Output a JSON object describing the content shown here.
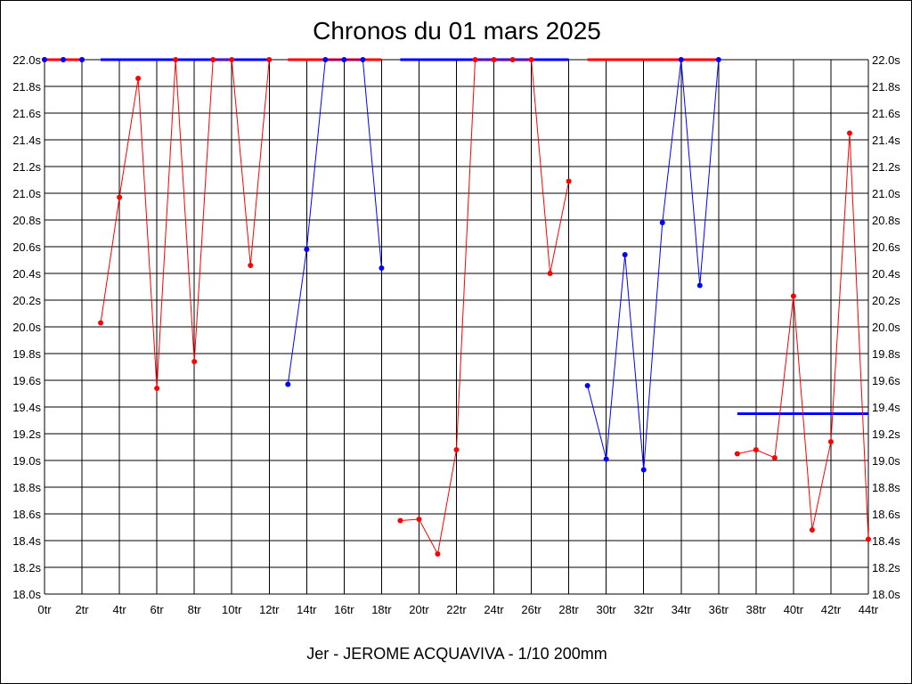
{
  "chart_data": {
    "type": "line",
    "title": "Chronos du 01 mars 2025",
    "subtitle": "Jer - JEROME ACQUAVIVA - 1/10 200mm",
    "xlabel": "",
    "ylabel": "",
    "x_unit_suffix": "tr",
    "y_unit_suffix": "s",
    "xlim": [
      0,
      44
    ],
    "ylim": [
      18.0,
      22.0
    ],
    "x_ticks": [
      "0tr",
      "2tr",
      "4tr",
      "6tr",
      "8tr",
      "10tr",
      "12tr",
      "14tr",
      "16tr",
      "18tr",
      "20tr",
      "22tr",
      "24tr",
      "26tr",
      "28tr",
      "30tr",
      "32tr",
      "34tr",
      "36tr",
      "38tr",
      "40tr",
      "42tr",
      "44tr"
    ],
    "y_ticks": [
      "18.0s",
      "18.2s",
      "18.4s",
      "18.6s",
      "18.8s",
      "19.0s",
      "19.2s",
      "19.4s",
      "19.6s",
      "19.8s",
      "20.0s",
      "20.2s",
      "20.4s",
      "20.6s",
      "20.8s",
      "21.0s",
      "21.2s",
      "21.4s",
      "21.6s",
      "21.8s",
      "22.0s"
    ],
    "grid": true,
    "colors": {
      "red": "#ff0000",
      "blue": "#0000ff",
      "grid": "#000000"
    },
    "series": [
      {
        "color": "red",
        "x": [
          0,
          1,
          2
        ],
        "y": [
          22.0,
          22.0,
          22.0
        ],
        "line": false,
        "points": [
          0,
          1,
          2
        ]
      },
      {
        "color": "blue",
        "x": [
          0,
          1,
          2
        ],
        "y": [
          22.0,
          22.0,
          22.0
        ],
        "line": false,
        "points_only": true
      },
      {
        "color": "red",
        "x": [
          3,
          4,
          5,
          6,
          7,
          8,
          9,
          10,
          11,
          12
        ],
        "y": [
          20.03,
          20.97,
          21.86,
          19.54,
          22.0,
          19.74,
          22.0,
          22.0,
          20.46,
          22.0
        ]
      },
      {
        "color": "blue",
        "x": [
          13,
          14,
          15,
          16,
          17,
          18
        ],
        "y": [
          19.57,
          20.58,
          22.0,
          22.0,
          22.0,
          20.44
        ]
      },
      {
        "color": "red",
        "x": [
          19,
          20,
          21,
          22,
          23,
          24,
          25,
          26,
          27,
          28
        ],
        "y": [
          18.55,
          18.56,
          18.3,
          19.08,
          22.0,
          22.0,
          22.0,
          22.0,
          20.4,
          21.09
        ]
      },
      {
        "color": "blue",
        "x": [
          29,
          30,
          31,
          32,
          33,
          34,
          35,
          36
        ],
        "y": [
          19.56,
          19.01,
          20.54,
          18.93,
          20.78,
          22.0,
          20.31,
          22.0
        ]
      },
      {
        "color": "red",
        "x": [
          37,
          38,
          39,
          40,
          41,
          42,
          43,
          44
        ],
        "y": [
          19.05,
          19.08,
          19.02,
          20.23,
          18.48,
          19.14,
          21.45,
          18.41
        ]
      }
    ],
    "average_lines": [
      {
        "color": "red",
        "x": [
          0,
          2
        ],
        "y": 22.0
      },
      {
        "color": "blue",
        "x": [
          3,
          12
        ],
        "y": 22.0
      },
      {
        "color": "red",
        "x": [
          13,
          18
        ],
        "y": 22.0
      },
      {
        "color": "blue",
        "x": [
          19,
          28
        ],
        "y": 22.0
      },
      {
        "color": "red",
        "x": [
          29,
          36
        ],
        "y": 22.0
      },
      {
        "color": "blue",
        "x": [
          37,
          44
        ],
        "y": 19.35
      }
    ]
  }
}
